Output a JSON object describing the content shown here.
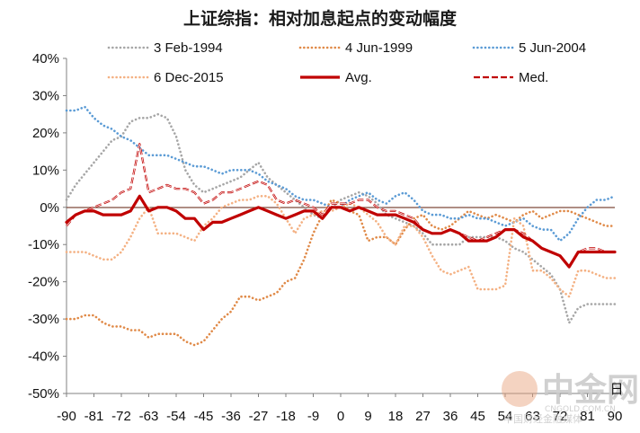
{
  "chart_data": {
    "type": "line",
    "title": "上证综指：相对加息起点的变动幅度",
    "xlabel": "",
    "ylabel": "",
    "x_unit": "日",
    "ylim": [
      -50,
      40
    ],
    "y_ticks": [
      40,
      30,
      20,
      10,
      0,
      -10,
      -20,
      -30,
      -40,
      -50
    ],
    "y_tick_labels": [
      "40%",
      "30%",
      "20%",
      "10%",
      "0%",
      "-10%",
      "-20%",
      "-30%",
      "-40%",
      "-50%"
    ],
    "x_range": [
      -90,
      90
    ],
    "x_ticks": [
      -90,
      -81,
      -72,
      -63,
      -54,
      -45,
      -36,
      -27,
      -18,
      -9,
      0,
      9,
      18,
      27,
      36,
      45,
      54,
      63,
      72,
      81,
      90
    ],
    "grid": false,
    "series": [
      {
        "name": "3 Feb-1994",
        "color": "#a6a6a6",
        "style": "dotted",
        "x": [
          -90,
          -87,
          -84,
          -81,
          -78,
          -75,
          -72,
          -69,
          -66,
          -63,
          -60,
          -57,
          -54,
          -51,
          -48,
          -45,
          -42,
          -39,
          -36,
          -33,
          -30,
          -27,
          -24,
          -21,
          -18,
          -15,
          -12,
          -9,
          -6,
          -3,
          0,
          3,
          6,
          9,
          12,
          15,
          18,
          21,
          24,
          27,
          30,
          33,
          36,
          39,
          42,
          45,
          48,
          51,
          54,
          57,
          60,
          63,
          66,
          69,
          72,
          75,
          78,
          81,
          84,
          87,
          90
        ],
        "y": [
          2,
          6,
          9,
          12,
          15,
          18,
          19,
          23,
          24,
          24,
          25,
          24,
          19,
          10,
          6,
          4,
          5,
          6,
          7,
          8,
          10,
          12,
          8,
          6,
          4,
          2,
          0,
          -2,
          -3,
          0,
          2,
          3,
          4,
          3,
          1,
          -2,
          -3,
          -4,
          -5,
          -7,
          -10,
          -10,
          -10,
          -10,
          -8,
          -8,
          -8,
          -8,
          -9,
          -11,
          -12,
          -14,
          -16,
          -18,
          -22,
          -31,
          -27,
          -26,
          -26,
          -26,
          -26
        ]
      },
      {
        "name": "4 Jun-1999",
        "color": "#e08a48",
        "style": "dotted",
        "x": [
          -90,
          -87,
          -84,
          -81,
          -78,
          -75,
          -72,
          -69,
          -66,
          -63,
          -60,
          -57,
          -54,
          -51,
          -48,
          -45,
          -42,
          -39,
          -36,
          -33,
          -30,
          -27,
          -24,
          -21,
          -18,
          -15,
          -12,
          -9,
          -6,
          -3,
          0,
          3,
          6,
          9,
          12,
          15,
          18,
          21,
          24,
          27,
          30,
          33,
          36,
          39,
          42,
          45,
          48,
          51,
          54,
          57,
          60,
          63,
          66,
          69,
          72,
          75,
          78,
          81,
          84,
          87,
          90
        ],
        "y": [
          -30,
          -30,
          -29,
          -29,
          -31,
          -32,
          -32,
          -33,
          -33,
          -35,
          -34,
          -34,
          -34,
          -36,
          -37,
          -36,
          -33,
          -30,
          -28,
          -24,
          -24,
          -25,
          -24,
          -23,
          -20,
          -19,
          -14,
          -7,
          -2,
          2,
          1,
          -1,
          -2,
          -9,
          -8,
          -8,
          -10,
          -6,
          -3,
          -2,
          -5,
          -6,
          -5,
          -3,
          -1,
          -2,
          -3,
          -2,
          -3,
          -4,
          -2,
          -1,
          -3,
          -2,
          -1,
          -1,
          -2,
          -3,
          -4,
          -5,
          -5
        ]
      },
      {
        "name": "5 Jun-2004",
        "color": "#5b9bd5",
        "style": "dotted",
        "x": [
          -90,
          -87,
          -84,
          -81,
          -78,
          -75,
          -72,
          -69,
          -66,
          -63,
          -60,
          -57,
          -54,
          -51,
          -48,
          -45,
          -42,
          -39,
          -36,
          -33,
          -30,
          -27,
          -24,
          -21,
          -18,
          -15,
          -12,
          -9,
          -6,
          -3,
          0,
          3,
          6,
          9,
          12,
          15,
          18,
          21,
          24,
          27,
          30,
          33,
          36,
          39,
          42,
          45,
          48,
          51,
          54,
          57,
          60,
          63,
          66,
          69,
          72,
          75,
          78,
          81,
          84,
          87,
          90
        ],
        "y": [
          26,
          26,
          27,
          24,
          22,
          21,
          19,
          18,
          16,
          14,
          14,
          14,
          13,
          12,
          11,
          11,
          10,
          9,
          10,
          10,
          10,
          9,
          7,
          6,
          5,
          3,
          2,
          2,
          1,
          0,
          0,
          2,
          3,
          4,
          2,
          1,
          3,
          4,
          2,
          -1,
          -2,
          -2,
          -3,
          -3,
          -2,
          -3,
          -3,
          -4,
          -5,
          -4,
          -3,
          -5,
          -6,
          -6,
          -9,
          -7,
          -3,
          0,
          2,
          2,
          3
        ]
      },
      {
        "name": "6 Dec-2015",
        "color": "#f4b183",
        "style": "dotted",
        "x": [
          -90,
          -87,
          -84,
          -81,
          -78,
          -75,
          -72,
          -69,
          -66,
          -63,
          -60,
          -57,
          -54,
          -51,
          -48,
          -45,
          -42,
          -39,
          -36,
          -33,
          -30,
          -27,
          -24,
          -21,
          -18,
          -15,
          -12,
          -9,
          -6,
          -3,
          0,
          3,
          6,
          9,
          12,
          15,
          18,
          21,
          24,
          27,
          30,
          33,
          36,
          39,
          42,
          45,
          48,
          51,
          54,
          57,
          60,
          63,
          66,
          69,
          72,
          75,
          78,
          81,
          84,
          87,
          90
        ],
        "y": [
          -12,
          -12,
          -12,
          -13,
          -14,
          -14,
          -12,
          -8,
          -3,
          0,
          -7,
          -7,
          -7,
          -8,
          -9,
          -5,
          -3,
          0,
          1,
          2,
          2,
          3,
          3,
          1,
          -3,
          -7,
          -3,
          -2,
          -1,
          -1,
          0,
          1,
          0,
          -2,
          -4,
          -8,
          -10,
          -5,
          -5,
          -8,
          -13,
          -17,
          -18,
          -17,
          -16,
          -22,
          -22,
          -22,
          -21,
          -3,
          -5,
          -17,
          -17,
          -19,
          -22,
          -24,
          -17,
          -17,
          -18,
          -19,
          -19
        ]
      },
      {
        "name": "Avg.",
        "color": "#c00000",
        "style": "solid",
        "x": [
          -90,
          -87,
          -84,
          -81,
          -78,
          -75,
          -72,
          -69,
          -66,
          -63,
          -60,
          -57,
          -54,
          -51,
          -48,
          -45,
          -42,
          -39,
          -36,
          -33,
          -30,
          -27,
          -24,
          -21,
          -18,
          -15,
          -12,
          -9,
          -6,
          -3,
          0,
          3,
          6,
          9,
          12,
          15,
          18,
          21,
          24,
          27,
          30,
          33,
          36,
          39,
          42,
          45,
          48,
          51,
          54,
          57,
          60,
          63,
          66,
          69,
          72,
          75,
          78,
          81,
          84,
          87,
          90
        ],
        "y": [
          -4,
          -2,
          -1,
          -1,
          -2,
          -2,
          -2,
          -1,
          3,
          -1,
          0,
          0,
          -1,
          -3,
          -3,
          -6,
          -4,
          -4,
          -3,
          -2,
          -1,
          0,
          -1,
          -2,
          -3,
          -2,
          -1,
          -1,
          -3,
          0,
          0,
          -1,
          0,
          -1,
          -2,
          -2,
          -2,
          -3,
          -4,
          -6,
          -7,
          -7,
          -6,
          -7,
          -9,
          -9,
          -9,
          -8,
          -6,
          -6,
          -8,
          -9,
          -11,
          -12,
          -13,
          -16,
          -12,
          -12,
          -12,
          -12,
          -12
        ]
      },
      {
        "name": "Med.",
        "color": "#c00000",
        "style": "dashed",
        "x": [
          -90,
          -87,
          -84,
          -81,
          -78,
          -75,
          -72,
          -69,
          -66,
          -63,
          -60,
          -57,
          -54,
          -51,
          -48,
          -45,
          -42,
          -39,
          -36,
          -33,
          -30,
          -27,
          -24,
          -21,
          -18,
          -15,
          -12,
          -9,
          -6,
          -3,
          0,
          3,
          6,
          9,
          12,
          15,
          18,
          21,
          24,
          27,
          30,
          33,
          36,
          39,
          42,
          45,
          48,
          51,
          54,
          57,
          60,
          63,
          66,
          69,
          72,
          75,
          78,
          81,
          84,
          87,
          90
        ],
        "y": [
          -5,
          -2,
          -1,
          0,
          1,
          2,
          4,
          5,
          17,
          4,
          5,
          6,
          5,
          5,
          4,
          1,
          2,
          4,
          4,
          5,
          6,
          7,
          6,
          2,
          1,
          2,
          1,
          0,
          -2,
          1,
          1,
          1,
          2,
          2,
          0,
          -1,
          -1,
          -2,
          -3,
          -6,
          -7,
          -7,
          -6,
          -7,
          -8,
          -9,
          -8,
          -7,
          -6,
          -6,
          -7,
          -9,
          -11,
          -12,
          -13,
          -16,
          -12,
          -11,
          -11,
          -12,
          -12
        ]
      }
    ],
    "legend_position": "top",
    "watermark": {
      "brand": "中金网",
      "site": "CNGOLD.COM.CN",
      "caption": "中国财经金融媒体"
    }
  }
}
